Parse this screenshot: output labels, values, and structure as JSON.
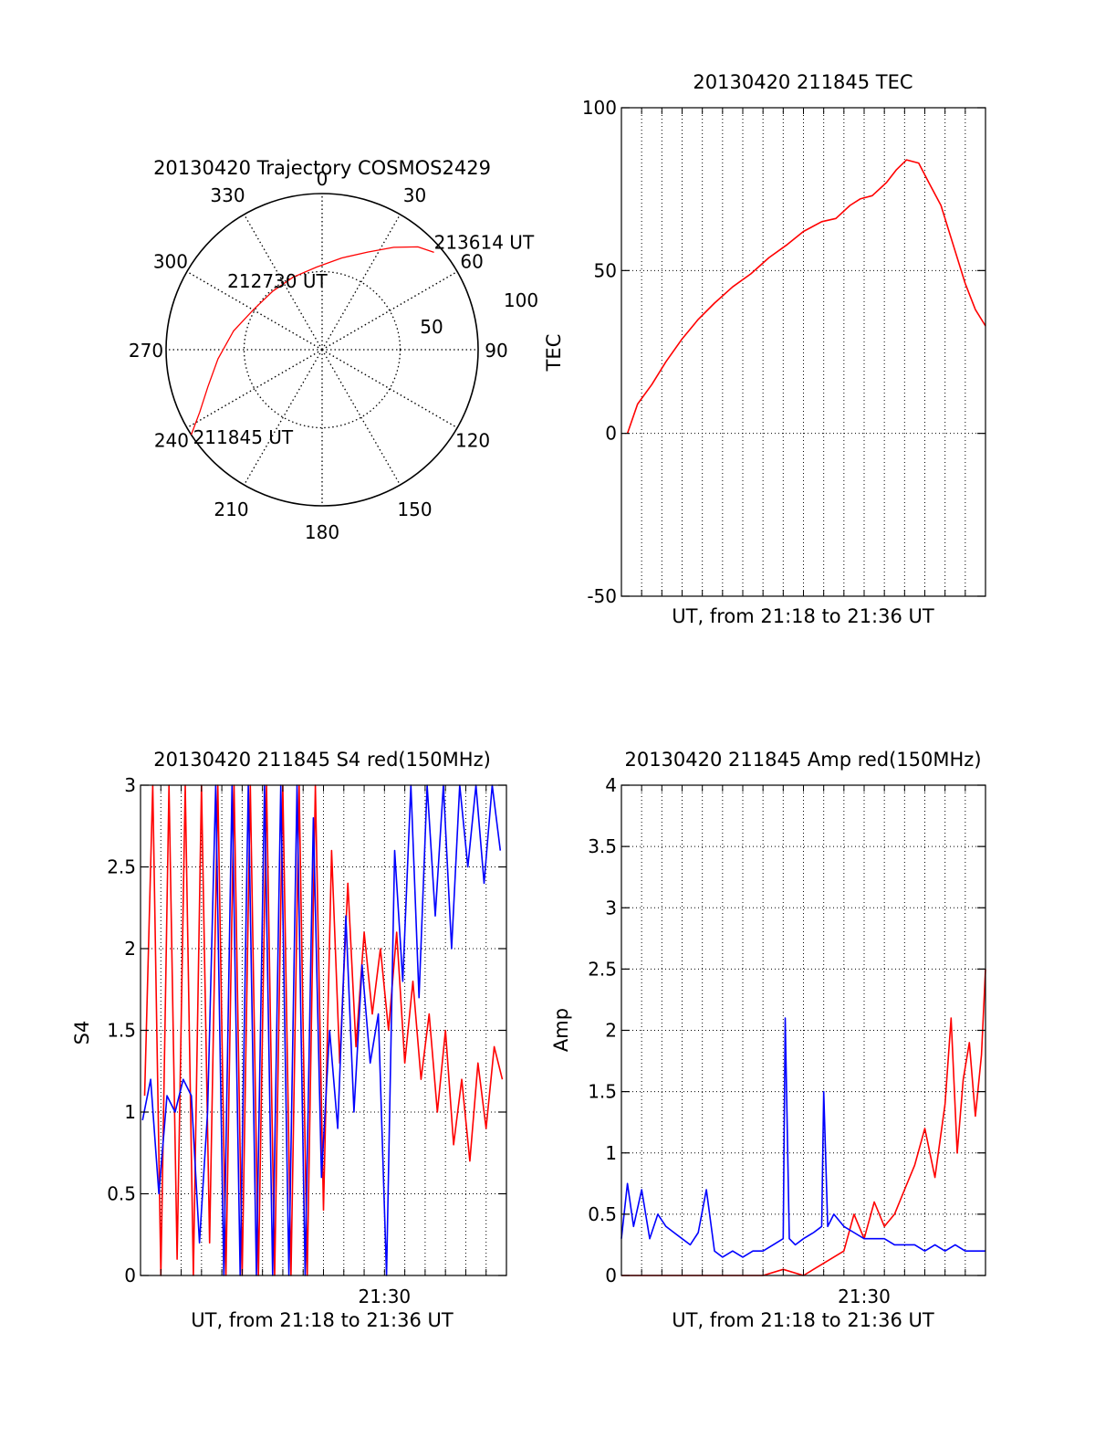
{
  "colors": {
    "red": "#ff0000",
    "blue": "#0000ff",
    "axis": "#000000",
    "grid": "#000000"
  },
  "chart_data": [
    {
      "id": "trajectory",
      "type": "scatter",
      "projection": "polar",
      "title": "20130420 Trajectory COSMOS2429",
      "azimuth_labels": [
        "0",
        "30",
        "60",
        "90",
        "120",
        "150",
        "180",
        "210",
        "240",
        "270",
        "300",
        "330"
      ],
      "ring_labels": [
        "50",
        "100"
      ],
      "r_max": 100,
      "track": {
        "color": "red",
        "points": [
          {
            "az": 237,
            "r": 100
          },
          {
            "az": 243,
            "r": 88
          },
          {
            "az": 252,
            "r": 77
          },
          {
            "az": 265,
            "r": 67
          },
          {
            "az": 282,
            "r": 58
          },
          {
            "az": 300,
            "r": 51
          },
          {
            "az": 320,
            "r": 49
          },
          {
            "az": 338,
            "r": 50
          },
          {
            "az": 356,
            "r": 53
          },
          {
            "az": 12,
            "r": 60
          },
          {
            "az": 25,
            "r": 69
          },
          {
            "az": 35,
            "r": 80
          },
          {
            "az": 43,
            "r": 90
          },
          {
            "az": 49,
            "r": 95
          }
        ]
      },
      "annotations": [
        {
          "text": "211845 UT",
          "az": 237,
          "r": 100
        },
        {
          "text": "212730 UT",
          "az": 320,
          "r": 49
        },
        {
          "text": "213614 UT",
          "az": 49,
          "r": 95
        }
      ]
    },
    {
      "id": "tec",
      "type": "line",
      "title": "20130420 211845 TEC",
      "xlabel": "UT, from 21:18 to 21:36 UT",
      "ylabel": "TEC",
      "ylim": [
        -50,
        100
      ],
      "yticks": [
        "100",
        "50",
        "0",
        "-50"
      ],
      "xlim_minutes": [
        0,
        18
      ],
      "grid": true,
      "series": [
        {
          "color": "red",
          "x": [
            0.3,
            0.8,
            1.5,
            2.2,
            3.0,
            3.8,
            4.6,
            5.5,
            6.4,
            7.3,
            8.2,
            9.0,
            9.9,
            10.6,
            11.3,
            11.8,
            12.4,
            13.1,
            13.6,
            14.1,
            14.7,
            15.2,
            15.8,
            16.4,
            17.0,
            17.5,
            18.0
          ],
          "y": [
            0,
            9,
            15,
            22,
            29,
            35,
            40,
            45,
            49,
            54,
            58,
            62,
            65,
            66,
            70,
            72,
            73,
            77,
            81,
            84,
            83,
            77,
            70,
            58,
            46,
            38,
            33
          ]
        }
      ]
    },
    {
      "id": "s4",
      "type": "line",
      "title": "20130420 211845 S4 red(150MHz)",
      "xlabel": "UT, from 21:18 to 21:36 UT",
      "ylabel": "S4",
      "ylim": [
        0,
        3
      ],
      "yticks": [
        "0",
        "0.5",
        "1",
        "1.5",
        "2",
        "2.5",
        "3"
      ],
      "xtick_labels": [
        "21:30"
      ],
      "xtick_minutes": [
        12
      ],
      "xlim_minutes": [
        0,
        18
      ],
      "grid": true,
      "series": [
        {
          "color": "red",
          "x": [
            0.2,
            0.6,
            1.0,
            1.4,
            1.8,
            2.2,
            2.6,
            3.0,
            3.4,
            3.8,
            4.2,
            4.6,
            5.0,
            5.4,
            5.8,
            6.2,
            6.6,
            7.0,
            7.4,
            7.8,
            8.2,
            8.6,
            9.0,
            9.4,
            9.8,
            10.2,
            10.6,
            11.0,
            11.4,
            11.8,
            12.2,
            12.6,
            13.0,
            13.4,
            13.8,
            14.2,
            14.6,
            15.0,
            15.4,
            15.8,
            16.2,
            16.6,
            17.0,
            17.4,
            17.8
          ],
          "y": [
            1.1,
            3.0,
            0.0,
            3.0,
            0.1,
            3.0,
            0.0,
            3.0,
            0.2,
            3.0,
            0.0,
            3.0,
            0.0,
            3.0,
            0.0,
            3.0,
            0.0,
            3.0,
            0.0,
            3.0,
            0.0,
            3.0,
            0.4,
            2.6,
            1.3,
            2.4,
            1.4,
            2.1,
            1.6,
            2.0,
            1.5,
            2.1,
            1.3,
            1.8,
            1.2,
            1.6,
            1.0,
            1.5,
            0.8,
            1.2,
            0.7,
            1.3,
            0.9,
            1.4,
            1.2
          ]
        },
        {
          "color": "blue",
          "x": [
            0.1,
            0.5,
            0.9,
            1.3,
            1.7,
            2.1,
            2.5,
            2.9,
            3.3,
            3.7,
            4.1,
            4.5,
            4.9,
            5.3,
            5.7,
            6.1,
            6.5,
            6.9,
            7.3,
            7.7,
            8.1,
            8.5,
            8.9,
            9.3,
            9.7,
            10.1,
            10.5,
            10.9,
            11.3,
            11.7,
            12.1,
            12.5,
            12.9,
            13.3,
            13.7,
            14.1,
            14.5,
            14.9,
            15.3,
            15.7,
            16.1,
            16.5,
            16.9,
            17.3,
            17.7
          ],
          "y": [
            0.95,
            1.2,
            0.5,
            1.1,
            1.0,
            1.2,
            1.1,
            0.2,
            1.0,
            3.0,
            0.0,
            3.0,
            0.0,
            3.0,
            0.0,
            3.0,
            0.0,
            3.0,
            0.0,
            3.0,
            0.0,
            2.8,
            0.6,
            1.5,
            0.9,
            2.2,
            1.0,
            1.9,
            1.3,
            1.6,
            0.0,
            2.6,
            1.8,
            3.0,
            1.7,
            3.0,
            2.2,
            3.0,
            2.0,
            3.0,
            2.5,
            3.0,
            2.4,
            3.0,
            2.6
          ]
        }
      ]
    },
    {
      "id": "amp",
      "type": "line",
      "title": "20130420 211845 Amp red(150MHz)",
      "xlabel": "UT, from 21:18 to 21:36 UT",
      "ylabel": "Amp",
      "ylim": [
        0,
        4
      ],
      "yticks": [
        "0",
        "0.5",
        "1",
        "1.5",
        "2",
        "2.5",
        "3",
        "3.5",
        "4"
      ],
      "xtick_labels": [
        "21:30"
      ],
      "xtick_minutes": [
        12
      ],
      "xlim_minutes": [
        0,
        18
      ],
      "grid": true,
      "series": [
        {
          "color": "red",
          "x": [
            0.0,
            1.0,
            2.0,
            3.0,
            4.0,
            5.0,
            6.0,
            7.0,
            8.0,
            9.0,
            10.0,
            11.0,
            11.5,
            12.0,
            12.5,
            13.0,
            13.5,
            14.0,
            14.5,
            15.0,
            15.5,
            16.0,
            16.3,
            16.6,
            16.9,
            17.2,
            17.5,
            17.8,
            18.0
          ],
          "y": [
            0.0,
            0.0,
            0.0,
            0.0,
            0.0,
            0.0,
            0.0,
            0.0,
            0.05,
            0.0,
            0.1,
            0.2,
            0.5,
            0.3,
            0.6,
            0.4,
            0.5,
            0.7,
            0.9,
            1.2,
            0.8,
            1.4,
            2.1,
            1.0,
            1.6,
            1.9,
            1.3,
            1.8,
            2.5
          ]
        },
        {
          "color": "blue",
          "x": [
            0.0,
            0.3,
            0.6,
            1.0,
            1.4,
            1.8,
            2.2,
            2.6,
            3.0,
            3.4,
            3.8,
            4.2,
            4.6,
            5.0,
            5.5,
            6.0,
            6.5,
            7.0,
            7.5,
            8.0,
            8.1,
            8.3,
            8.6,
            9.0,
            9.5,
            9.9,
            10.0,
            10.2,
            10.5,
            11.0,
            11.5,
            12.0,
            12.5,
            13.0,
            13.5,
            14.0,
            14.5,
            15.0,
            15.5,
            16.0,
            16.5,
            17.0,
            17.5,
            18.0
          ],
          "y": [
            0.3,
            0.75,
            0.4,
            0.7,
            0.3,
            0.5,
            0.4,
            0.35,
            0.3,
            0.25,
            0.35,
            0.7,
            0.2,
            0.15,
            0.2,
            0.15,
            0.2,
            0.2,
            0.25,
            0.3,
            2.1,
            0.3,
            0.25,
            0.3,
            0.35,
            0.4,
            1.5,
            0.4,
            0.5,
            0.4,
            0.35,
            0.3,
            0.3,
            0.3,
            0.25,
            0.25,
            0.25,
            0.2,
            0.25,
            0.2,
            0.25,
            0.2,
            0.2,
            0.2
          ]
        }
      ]
    }
  ]
}
